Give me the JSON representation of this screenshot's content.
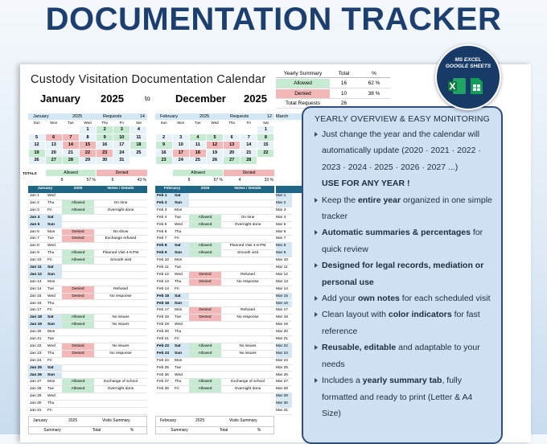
{
  "title": "DOCUMENTATION TRACKER",
  "badge": {
    "line1": "MS EXCEL",
    "line2": "GOOGLE SHEETS"
  },
  "sheet": {
    "heading": "Custody Visitation Documentation Calendar",
    "start_month": "January",
    "start_year": "2025",
    "to": "to",
    "end_month": "December",
    "end_year": "2025",
    "yearly_summary": {
      "header": [
        "Yearly Summary",
        "Total",
        "%"
      ],
      "rows": [
        [
          "Allowed",
          16,
          "62 %"
        ],
        [
          "Denied",
          10,
          "38 %"
        ],
        [
          "Total Requests",
          26
        ]
      ]
    },
    "weekdays": [
      "Sun",
      "Mon",
      "Tue",
      "Wed",
      "Thu",
      "Fri",
      "Sat"
    ],
    "totals_label": "TOTALS",
    "months": [
      {
        "name": "January",
        "year": "2025",
        "requests_label": "Requests",
        "requests": 14,
        "weeks": [
          [
            null,
            null,
            null,
            1,
            2,
            3,
            4
          ],
          [
            5,
            6,
            7,
            8,
            9,
            10,
            11
          ],
          [
            12,
            13,
            14,
            15,
            16,
            17,
            18
          ],
          [
            19,
            20,
            21,
            22,
            23,
            24,
            25
          ],
          [
            26,
            27,
            28,
            29,
            30,
            31,
            null
          ]
        ],
        "allowed_label": "Allowed",
        "denied_label": "Denied",
        "allowed": 8,
        "allowed_pct": "57 %",
        "denied": 6,
        "denied_pct": "43 %",
        "list_header": [
          "January",
          "2025",
          "Notes / Details"
        ],
        "days": [
          [
            "Jan 1",
            "Wed"
          ],
          [
            "Jan 2",
            "Thu",
            "Allowed",
            "On time"
          ],
          [
            "Jan 3",
            "Fri",
            "Allowed",
            "Overnight done"
          ],
          [
            "Jan 4",
            "Sat"
          ],
          [
            "Jan 5",
            "Sun"
          ],
          [
            "Jan 6",
            "Mon",
            "Denied",
            "No show"
          ],
          [
            "Jan 7",
            "Tue",
            "Denied",
            "Exchange refused"
          ],
          [
            "Jan 8",
            "Wed"
          ],
          [
            "Jan 9",
            "Thu",
            "Allowed",
            "Planned Visit 4-8 PM"
          ],
          [
            "Jan 10",
            "Fri",
            "Allowed",
            "Smooth visit"
          ],
          [
            "Jan 11",
            "Sat"
          ],
          [
            "Jan 12",
            "Sun"
          ],
          [
            "Jan 13",
            "Mon"
          ],
          [
            "Jan 14",
            "Tue",
            "Denied",
            "Refused"
          ],
          [
            "Jan 15",
            "Wed",
            "Denied",
            "No response"
          ],
          [
            "Jan 16",
            "Thu"
          ],
          [
            "Jan 17",
            "Fri"
          ],
          [
            "Jan 18",
            "Sat",
            "Allowed",
            "No issues"
          ],
          [
            "Jan 19",
            "Sun",
            "Allowed",
            "No issues"
          ],
          [
            "Jan 20",
            "Mon"
          ],
          [
            "Jan 21",
            "Tue"
          ],
          [
            "Jan 22",
            "Wed",
            "Denied",
            "No issues"
          ],
          [
            "Jan 23",
            "Thu",
            "Denied",
            "No response"
          ],
          [
            "Jan 24",
            "Fri"
          ],
          [
            "Jan 25",
            "Sat"
          ],
          [
            "Jan 26",
            "Sun"
          ],
          [
            "Jan 27",
            "Mon",
            "Allowed",
            "Exchange of school"
          ],
          [
            "Jan 28",
            "Tue",
            "Allowed",
            "Overnight done"
          ],
          [
            "Jan 29",
            "Wed"
          ],
          [
            "Jan 30",
            "Thu"
          ],
          [
            "Jan 31",
            "Fri"
          ]
        ],
        "summary_header": [
          "January",
          "2025",
          "Visits Summary"
        ],
        "summary_cols": [
          "Summary",
          "Total",
          "%"
        ]
      },
      {
        "name": "February",
        "year": "2025",
        "requests_label": "Requests",
        "requests": 12,
        "weeks": [
          [
            null,
            null,
            null,
            null,
            null,
            null,
            1
          ],
          [
            2,
            3,
            4,
            5,
            6,
            7,
            8
          ],
          [
            9,
            10,
            11,
            12,
            13,
            14,
            15
          ],
          [
            16,
            17,
            18,
            19,
            20,
            21,
            22
          ],
          [
            23,
            24,
            25,
            26,
            27,
            28,
            null
          ]
        ],
        "allowed_label": "Allowed",
        "denied_label": "Denied",
        "allowed": 8,
        "allowed_pct": "67 %",
        "denied": 4,
        "denied_pct": "33 %",
        "list_header": [
          "February",
          "2025",
          "Notes / Details"
        ],
        "days": [
          [
            "Feb 1",
            "Sat"
          ],
          [
            "Feb 2",
            "Sun"
          ],
          [
            "Feb 3",
            "Mon"
          ],
          [
            "Feb 4",
            "Tue",
            "Allowed",
            "On time"
          ],
          [
            "Feb 5",
            "Wed",
            "Allowed",
            "Overnight done"
          ],
          [
            "Feb 6",
            "Thu"
          ],
          [
            "Feb 7",
            "Fri"
          ],
          [
            "Feb 8",
            "Sat",
            "Allowed",
            "Planned Visit 4-8 PM"
          ],
          [
            "Feb 9",
            "Sun",
            "Allowed",
            "Smooth visit"
          ],
          [
            "Feb 10",
            "Mon"
          ],
          [
            "Feb 11",
            "Tue"
          ],
          [
            "Feb 12",
            "Wed",
            "Denied",
            "Refused"
          ],
          [
            "Feb 13",
            "Thu",
            "Denied",
            "No response"
          ],
          [
            "Feb 14",
            "Fri"
          ],
          [
            "Feb 15",
            "Sat"
          ],
          [
            "Feb 16",
            "Sun"
          ],
          [
            "Feb 17",
            "Mon",
            "Denied",
            "Refused"
          ],
          [
            "Feb 18",
            "Tue",
            "Denied",
            "No response"
          ],
          [
            "Feb 19",
            "Wed"
          ],
          [
            "Feb 20",
            "Thu"
          ],
          [
            "Feb 21",
            "Fri"
          ],
          [
            "Feb 22",
            "Sat",
            "Allowed",
            "No issues"
          ],
          [
            "Feb 23",
            "Sun",
            "Allowed",
            "No issues"
          ],
          [
            "Feb 24",
            "Mon"
          ],
          [
            "Feb 25",
            "Tue"
          ],
          [
            "Feb 26",
            "Wed"
          ],
          [
            "Feb 27",
            "Thu",
            "Allowed",
            "Exchange of school"
          ],
          [
            "Feb 28",
            "Fri",
            "Allowed",
            "Overnight done"
          ]
        ],
        "summary_header": [
          "February",
          "2025",
          "Visits Summary"
        ],
        "summary_cols": [
          "Summary",
          "Total",
          "%"
        ]
      },
      {
        "name": "March",
        "dates": [
          "Mar 1",
          "Mar 2",
          "Mar 3",
          "Mar 4",
          "Mar 5",
          "Mar 6",
          "Mar 7",
          "Mar 8",
          "Mar 9",
          "Mar 10",
          "Mar 11",
          "Mar 12",
          "Mar 13",
          "Mar 14",
          "Mar 15",
          "Mar 16",
          "Mar 17",
          "Mar 18",
          "Mar 19",
          "Mar 20",
          "Mar 21",
          "Mar 22",
          "Mar 23",
          "Mar 24",
          "Mar 25",
          "Mar 26",
          "Mar 27",
          "Mar 28",
          "Mar 29",
          "Mar 30",
          "Mar 31"
        ]
      }
    ]
  },
  "panel": {
    "title": "YEARLY OVERVIEW & EASY MONITORING",
    "items": [
      {
        "bullet": true,
        "parts": [
          {
            "t": "Just change the year and the calendar will automatically update (2020 · 2021 · 2022 · 2023 · 2024 · 2025 · 2026 · 2027 ...)"
          }
        ]
      },
      {
        "bullet": false,
        "parts": [
          {
            "t": "USE FOR ANY YEAR !",
            "b": true
          }
        ]
      },
      {
        "bullet": true,
        "parts": [
          {
            "t": "Keep the "
          },
          {
            "t": "entire year",
            "b": true
          },
          {
            "t": " organized in one simple tracker"
          }
        ]
      },
      {
        "bullet": true,
        "parts": [
          {
            "t": "Automatic summaries & percentages",
            "b": true
          },
          {
            "t": " for quick review"
          }
        ]
      },
      {
        "bullet": true,
        "parts": [
          {
            "t": "Designed for legal records, mediation or personal use",
            "b": true
          }
        ]
      },
      {
        "bullet": true,
        "parts": [
          {
            "t": "Add your "
          },
          {
            "t": "own notes",
            "b": true
          },
          {
            "t": " for each scheduled visit"
          }
        ]
      },
      {
        "bullet": true,
        "parts": [
          {
            "t": "Clean layout with "
          },
          {
            "t": "color indicators",
            "b": true
          },
          {
            "t": " for fast reference"
          }
        ]
      },
      {
        "bullet": true,
        "parts": [
          {
            "t": "Reusable, editable",
            "b": true
          },
          {
            "t": " and adaptable to your needs"
          }
        ]
      },
      {
        "bullet": true,
        "parts": [
          {
            "t": "Includes a "
          },
          {
            "t": "yearly summary tab",
            "b": true
          },
          {
            "t": ", fully formatted and ready to print (Letter & A4 Size)"
          }
        ]
      }
    ]
  }
}
